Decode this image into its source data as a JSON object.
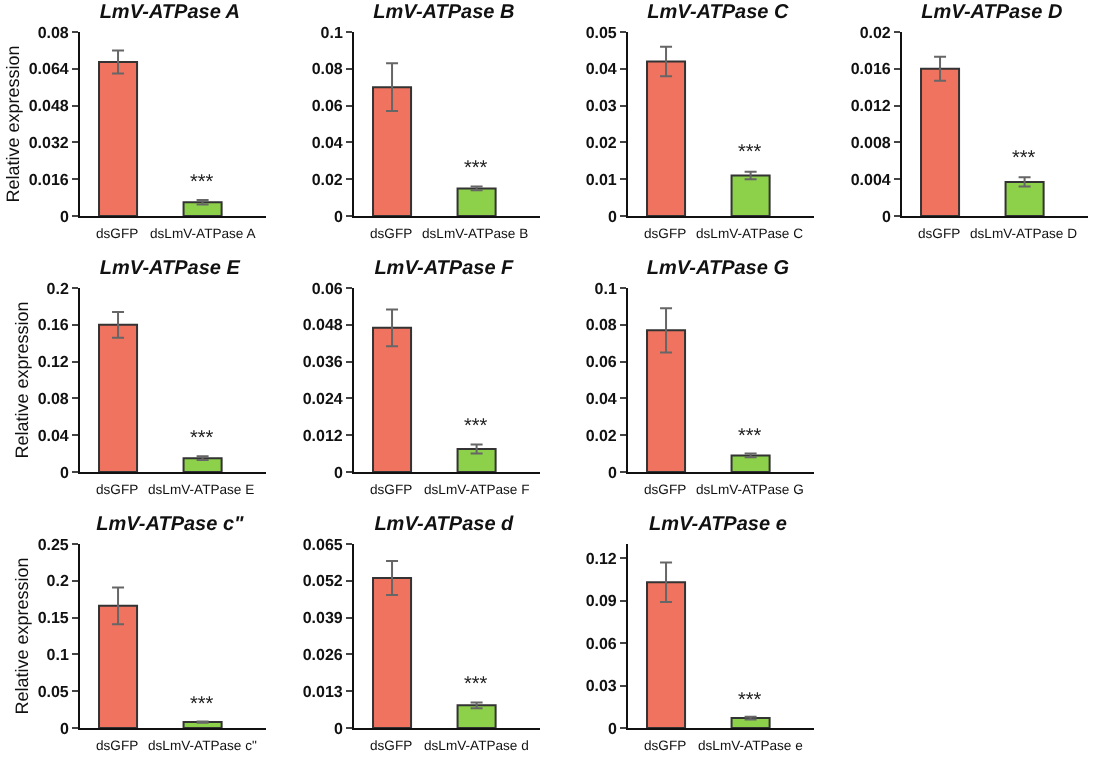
{
  "chart_data": [
    {
      "type": "bar",
      "title": "LmV-ATPase A",
      "ylabel": "Relative expression",
      "categories": [
        "dsGFP",
        "dsLmV-ATPase A"
      ],
      "values": [
        0.067,
        0.006
      ],
      "errors": [
        0.005,
        0.001
      ],
      "colors": [
        "#f07360",
        "#8dd14a"
      ],
      "ylim": [
        0,
        0.08
      ],
      "yticks": [
        0,
        0.016,
        0.032,
        0.048,
        0.064,
        0.08
      ],
      "annotations": [
        {
          "text": "***",
          "x": "dsLmV-ATPase A",
          "y": 0.008
        }
      ]
    },
    {
      "type": "bar",
      "title": "LmV-ATPase B",
      "categories": [
        "dsGFP",
        "dsLmV-ATPase B"
      ],
      "values": [
        0.07,
        0.015
      ],
      "errors": [
        0.013,
        0.001
      ],
      "colors": [
        "#f07360",
        "#8dd14a"
      ],
      "ylim": [
        0,
        0.1
      ],
      "yticks": [
        0,
        0.02,
        0.04,
        0.06,
        0.08,
        0.1
      ],
      "annotations": [
        {
          "text": "***",
          "x": "dsLmV-ATPase B",
          "y": 0.017
        }
      ]
    },
    {
      "type": "bar",
      "title": "LmV-ATPase C",
      "categories": [
        "dsGFP",
        "dsLmV-ATPase C"
      ],
      "values": [
        0.042,
        0.011
      ],
      "errors": [
        0.004,
        0.001
      ],
      "colors": [
        "#f07360",
        "#8dd14a"
      ],
      "ylim": [
        0,
        0.05
      ],
      "yticks": [
        0,
        0.01,
        0.02,
        0.03,
        0.04,
        0.05
      ],
      "annotations": [
        {
          "text": "***",
          "x": "dsLmV-ATPase C",
          "y": 0.013
        }
      ]
    },
    {
      "type": "bar",
      "title": "LmV-ATPase D",
      "categories": [
        "dsGFP",
        "dsLmV-ATPase D"
      ],
      "values": [
        0.016,
        0.0037
      ],
      "errors": [
        0.0013,
        0.0005
      ],
      "colors": [
        "#f07360",
        "#8dd14a"
      ],
      "ylim": [
        0,
        0.02
      ],
      "yticks": [
        0,
        0.004,
        0.008,
        0.012,
        0.016,
        0.02
      ],
      "annotations": [
        {
          "text": "***",
          "x": "dsLmV-ATPase D",
          "y": 0.0045
        }
      ]
    },
    {
      "type": "bar",
      "title": "LmV-ATPase E",
      "ylabel": "Relative expression",
      "categories": [
        "dsGFP",
        "dsLmV-ATPase E"
      ],
      "values": [
        0.16,
        0.015
      ],
      "errors": [
        0.014,
        0.002
      ],
      "colors": [
        "#f07360",
        "#8dd14a"
      ],
      "ylim": [
        0,
        0.2
      ],
      "yticks": [
        0,
        0.04,
        0.08,
        0.12,
        0.16,
        0.2
      ],
      "annotations": [
        {
          "text": "***",
          "x": "dsLmV-ATPase E",
          "y": 0.019
        }
      ]
    },
    {
      "type": "bar",
      "title": "LmV-ATPase F",
      "categories": [
        "dsGFP",
        "dsLmV-ATPase F"
      ],
      "values": [
        0.047,
        0.0075
      ],
      "errors": [
        0.006,
        0.0015
      ],
      "colors": [
        "#f07360",
        "#8dd14a"
      ],
      "ylim": [
        0,
        0.06
      ],
      "yticks": [
        0,
        0.012,
        0.024,
        0.036,
        0.048,
        0.06
      ],
      "annotations": [
        {
          "text": "***",
          "x": "dsLmV-ATPase F",
          "y": 0.01
        }
      ]
    },
    {
      "type": "bar",
      "title": "LmV-ATPase G",
      "categories": [
        "dsGFP",
        "dsLmV-ATPase G"
      ],
      "values": [
        0.077,
        0.009
      ],
      "errors": [
        0.012,
        0.001
      ],
      "colors": [
        "#f07360",
        "#8dd14a"
      ],
      "ylim": [
        0,
        0.1
      ],
      "yticks": [
        0,
        0.02,
        0.04,
        0.06,
        0.08,
        0.1
      ],
      "annotations": [
        {
          "text": "***",
          "x": "dsLmV-ATPase G",
          "y": 0.011
        }
      ]
    },
    {
      "type": "bar",
      "title": "LmV-ATPase c\"",
      "ylabel": "Relative expression",
      "categories": [
        "dsGFP",
        "dsLmV-ATPase c\""
      ],
      "values": [
        0.166,
        0.008
      ],
      "errors": [
        0.025,
        0.001
      ],
      "colors": [
        "#f07360",
        "#8dd14a"
      ],
      "ylim": [
        0,
        0.25
      ],
      "yticks": [
        0,
        0.05,
        0.1,
        0.15,
        0.2,
        0.25
      ],
      "annotations": [
        {
          "text": "***",
          "x": "dsLmV-ATPase c\"",
          "y": 0.01
        }
      ]
    },
    {
      "type": "bar",
      "title": "LmV-ATPase d",
      "categories": [
        "dsGFP",
        "dsLmV-ATPase d"
      ],
      "values": [
        0.053,
        0.008
      ],
      "errors": [
        0.006,
        0.001
      ],
      "colors": [
        "#f07360",
        "#8dd14a"
      ],
      "ylim": [
        0,
        0.065
      ],
      "yticks": [
        0,
        0.013,
        0.026,
        0.039,
        0.052,
        0.065
      ],
      "annotations": [
        {
          "text": "***",
          "x": "dsLmV-ATPase d",
          "y": 0.01
        }
      ]
    },
    {
      "type": "bar",
      "title": "LmV-ATPase e",
      "categories": [
        "dsGFP",
        "dsLmV-ATPase e"
      ],
      "values": [
        0.103,
        0.007
      ],
      "errors": [
        0.014,
        0.001
      ],
      "colors": [
        "#f07360",
        "#8dd14a"
      ],
      "ylim": [
        0,
        0.13
      ],
      "yticks": [
        0,
        0.03,
        0.06,
        0.09,
        0.12
      ],
      "annotations": [
        {
          "text": "***",
          "x": "dsLmV-ATPase e",
          "y": 0.009
        }
      ]
    }
  ]
}
